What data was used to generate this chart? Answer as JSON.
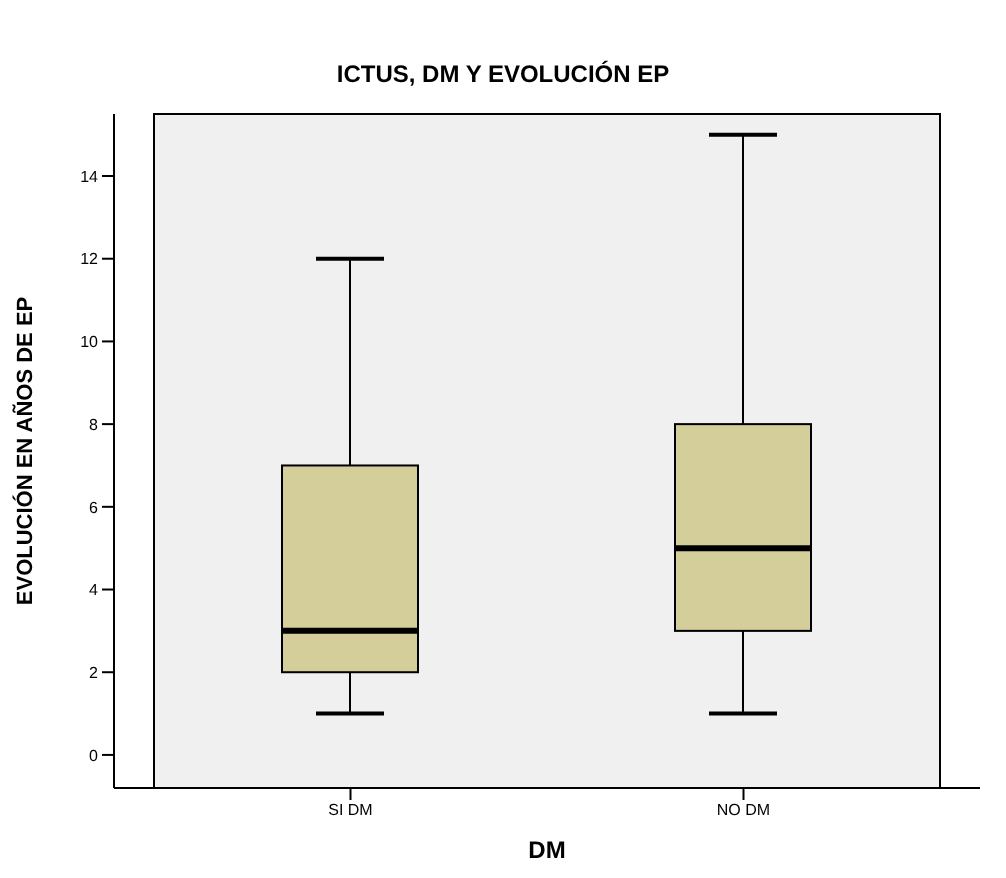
{
  "chart_data": {
    "type": "box",
    "title": "ICTUS, DM Y EVOLUCIÓN EP",
    "xlabel": "DM",
    "ylabel": "EVOLUCIÓN EN AÑOS DE EP",
    "categories": [
      "SI DM",
      "NO DM"
    ],
    "boxes": [
      {
        "low": 1,
        "q1": 2,
        "median": 3,
        "q3": 7,
        "high": 12
      },
      {
        "low": 1,
        "q1": 3,
        "median": 5,
        "q3": 8,
        "high": 15
      }
    ],
    "color": "#d3ce9a",
    "ylim": [
      -0.8,
      15.5
    ],
    "yticks": [
      0,
      2,
      4,
      6,
      8,
      10,
      12,
      14
    ],
    "grid": false
  }
}
